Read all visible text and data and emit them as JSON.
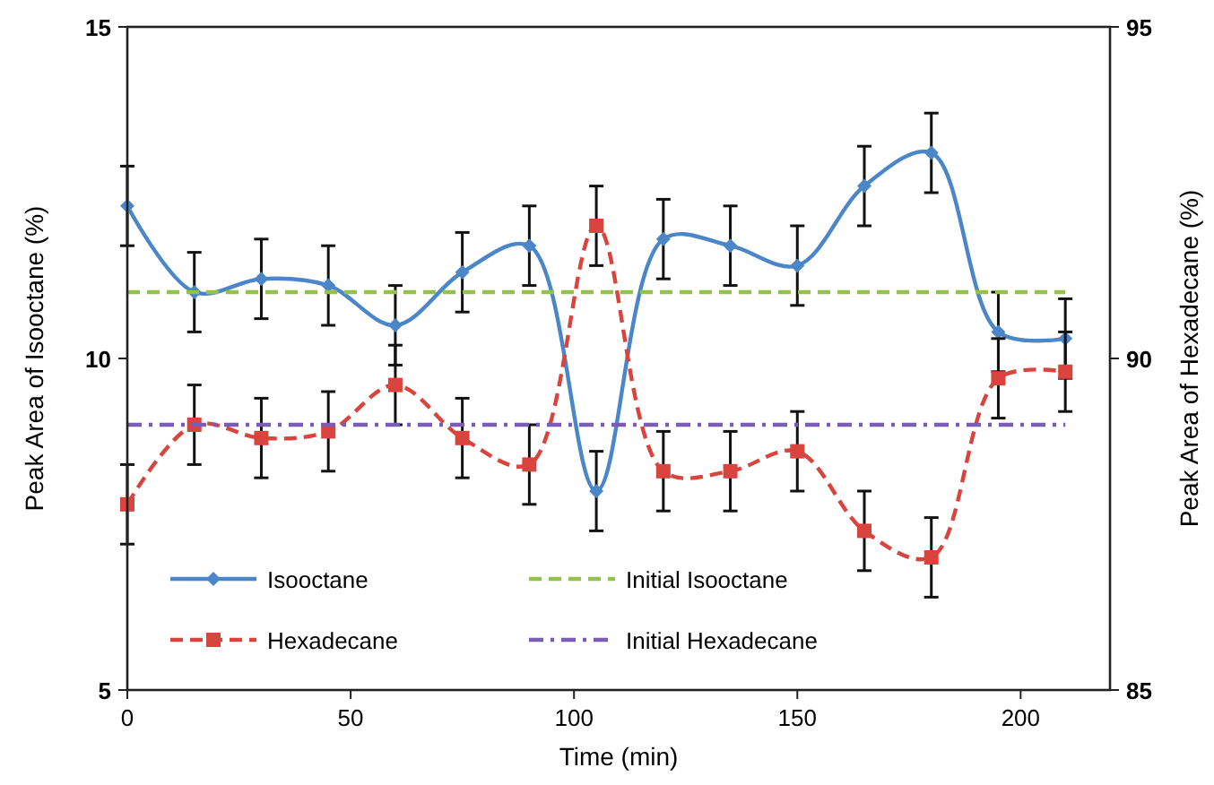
{
  "chart_data": {
    "type": "line",
    "xlabel": "Time (min)",
    "ylabel": "Peak Area of Isooctane (%)",
    "y2label": "Peak Area of Hexadecane (%)",
    "xlim": [
      0,
      220
    ],
    "xticks": [
      0,
      50,
      100,
      150,
      200
    ],
    "ylim": [
      5,
      15
    ],
    "yticks": [
      5,
      10,
      15
    ],
    "y2lim": [
      85,
      95
    ],
    "y2ticks": [
      85,
      90,
      95
    ],
    "grid": false,
    "legend": "bottom left",
    "series": [
      {
        "name": "Isooctane",
        "color": "#4a86c8",
        "marker": "diamond",
        "line_style": "solid",
        "x": [
          0,
          15,
          30,
          45,
          60,
          75,
          90,
          105,
          120,
          135,
          150,
          165,
          180,
          195,
          210
        ],
        "values": [
          12.3,
          11.0,
          11.2,
          11.1,
          10.5,
          11.3,
          11.7,
          8.0,
          11.8,
          11.7,
          11.4,
          12.6,
          13.1,
          10.4,
          10.3
        ],
        "errors": [
          0.6,
          0.6,
          0.6,
          0.6,
          0.6,
          0.6,
          0.6,
          0.6,
          0.6,
          0.6,
          0.6,
          0.6,
          0.6,
          0.6,
          0.6
        ]
      },
      {
        "name": "Initial Isooctane",
        "color": "#92c24a",
        "marker": "none",
        "line_style": "dashed",
        "x": [
          0,
          210
        ],
        "values": [
          11.0,
          11.0
        ]
      },
      {
        "name": "Hexadecane",
        "color": "#d9443f",
        "marker": "square",
        "line_style": "dashed",
        "axis": "y2",
        "x": [
          0,
          15,
          30,
          45,
          60,
          75,
          90,
          105,
          120,
          135,
          150,
          165,
          180,
          195,
          210
        ],
        "values": [
          87.8,
          89.0,
          88.8,
          88.9,
          89.6,
          88.8,
          88.4,
          92.0,
          88.3,
          88.3,
          88.6,
          87.4,
          87.0,
          89.7,
          89.8
        ],
        "errors": [
          0.6,
          0.6,
          0.6,
          0.6,
          0.6,
          0.6,
          0.6,
          0.6,
          0.6,
          0.6,
          0.6,
          0.6,
          0.6,
          0.6,
          0.6
        ]
      },
      {
        "name": "Initial Hexadecane",
        "color": "#7a5cb5",
        "marker": "none",
        "line_style": "dashdot",
        "axis": "y2",
        "x": [
          0,
          210
        ],
        "values": [
          89.0,
          89.0
        ]
      }
    ]
  }
}
